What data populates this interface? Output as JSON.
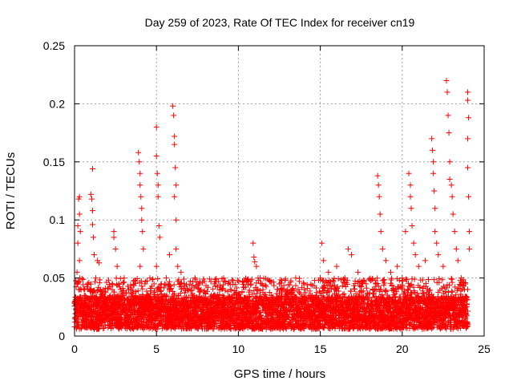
{
  "chart_data": {
    "type": "scatter",
    "title": "Day 259 of 2023, Rate Of TEC Index for receiver cn19",
    "xlabel": "GPS time / hours",
    "ylabel": "ROTI / TECUs",
    "xlim": [
      0,
      25
    ],
    "ylim": [
      0,
      0.25
    ],
    "x_ticks": [
      0,
      5,
      10,
      15,
      20,
      25
    ],
    "x_tick_labels": [
      "0",
      "5",
      "10",
      "15",
      "20",
      "25"
    ],
    "y_ticks": [
      0,
      0.05,
      0.1,
      0.15,
      0.2,
      0.25
    ],
    "y_tick_labels": [
      "0",
      "0.05",
      "0.1",
      "0.15",
      "0.2",
      "0.25"
    ],
    "grid": true,
    "legend": "none",
    "marker": "plus",
    "color": "#ff0000",
    "series": [
      {
        "values": [
          [
            0.1,
            0.012
          ],
          [
            0.1,
            0.03
          ],
          [
            0.15,
            0.055
          ],
          [
            0.2,
            0.08
          ],
          [
            0.2,
            0.095
          ],
          [
            0.25,
            0.118
          ],
          [
            0.3,
            0.12
          ],
          [
            0.3,
            0.105
          ],
          [
            0.35,
            0.09
          ],
          [
            0.3,
            0.065
          ],
          [
            0.4,
            0.04
          ],
          [
            0.5,
            0.025
          ],
          [
            0.6,
            0.035
          ],
          [
            0.7,
            0.02
          ],
          [
            0.8,
            0.045
          ],
          [
            1.0,
            0.122
          ],
          [
            1.05,
            0.118
          ],
          [
            1.1,
            0.108
          ],
          [
            1.1,
            0.096
          ],
          [
            1.15,
            0.085
          ],
          [
            1.2,
            0.07
          ],
          [
            1.1,
            0.144
          ],
          [
            1.3,
            0.05
          ],
          [
            1.4,
            0.065
          ],
          [
            1.5,
            0.063
          ],
          [
            1.6,
            0.04
          ],
          [
            1.8,
            0.03
          ],
          [
            2.2,
            0.035
          ],
          [
            2.4,
            0.085
          ],
          [
            2.4,
            0.09
          ],
          [
            2.5,
            0.075
          ],
          [
            2.6,
            0.06
          ],
          [
            2.7,
            0.045
          ],
          [
            3.0,
            0.035
          ],
          [
            3.3,
            0.04
          ],
          [
            3.6,
            0.03
          ],
          [
            3.9,
            0.158
          ],
          [
            3.95,
            0.15
          ],
          [
            4.0,
            0.14
          ],
          [
            4.0,
            0.13
          ],
          [
            4.05,
            0.12
          ],
          [
            4.1,
            0.11
          ],
          [
            4.1,
            0.1
          ],
          [
            4.15,
            0.09
          ],
          [
            4.2,
            0.075
          ],
          [
            4.0,
            0.06
          ],
          [
            4.3,
            0.045
          ],
          [
            4.5,
            0.035
          ],
          [
            4.6,
            0.05
          ],
          [
            5.0,
            0.18
          ],
          [
            5.0,
            0.155
          ],
          [
            5.05,
            0.14
          ],
          [
            5.1,
            0.13
          ],
          [
            5.1,
            0.12
          ],
          [
            5.15,
            0.095
          ],
          [
            5.2,
            0.085
          ],
          [
            5.0,
            0.06
          ],
          [
            5.3,
            0.045
          ],
          [
            5.5,
            0.035
          ],
          [
            5.6,
            0.05
          ],
          [
            5.8,
            0.07
          ],
          [
            6.0,
            0.198
          ],
          [
            6.05,
            0.19
          ],
          [
            6.1,
            0.172
          ],
          [
            6.1,
            0.165
          ],
          [
            6.15,
            0.145
          ],
          [
            6.2,
            0.13
          ],
          [
            6.1,
            0.12
          ],
          [
            6.2,
            0.1
          ],
          [
            6.2,
            0.075
          ],
          [
            6.3,
            0.06
          ],
          [
            6.5,
            0.055
          ],
          [
            6.7,
            0.045
          ],
          [
            7.0,
            0.04
          ],
          [
            7.3,
            0.035
          ],
          [
            7.6,
            0.045
          ],
          [
            8.0,
            0.03
          ],
          [
            8.5,
            0.035
          ],
          [
            9.0,
            0.03
          ],
          [
            9.5,
            0.04
          ],
          [
            10.0,
            0.035
          ],
          [
            10.5,
            0.025
          ],
          [
            10.9,
            0.08
          ],
          [
            10.95,
            0.068
          ],
          [
            11.0,
            0.064
          ],
          [
            11.1,
            0.06
          ],
          [
            11.5,
            0.04
          ],
          [
            12.0,
            0.035
          ],
          [
            12.5,
            0.045
          ],
          [
            13.0,
            0.04
          ],
          [
            13.5,
            0.05
          ],
          [
            14.0,
            0.045
          ],
          [
            14.5,
            0.035
          ],
          [
            15.0,
            0.05
          ],
          [
            15.1,
            0.08
          ],
          [
            15.2,
            0.065
          ],
          [
            15.5,
            0.055
          ],
          [
            16.0,
            0.06
          ],
          [
            16.5,
            0.05
          ],
          [
            16.7,
            0.075
          ],
          [
            16.9,
            0.07
          ],
          [
            17.3,
            0.055
          ],
          [
            17.8,
            0.045
          ],
          [
            18.2,
            0.04
          ],
          [
            18.5,
            0.138
          ],
          [
            18.55,
            0.13
          ],
          [
            18.6,
            0.12
          ],
          [
            18.65,
            0.105
          ],
          [
            18.7,
            0.09
          ],
          [
            18.8,
            0.075
          ],
          [
            19.0,
            0.065
          ],
          [
            19.3,
            0.055
          ],
          [
            19.7,
            0.06
          ],
          [
            20.0,
            0.05
          ],
          [
            20.2,
            0.09
          ],
          [
            20.4,
            0.14
          ],
          [
            20.5,
            0.13
          ],
          [
            20.5,
            0.12
          ],
          [
            20.55,
            0.11
          ],
          [
            20.6,
            0.095
          ],
          [
            20.7,
            0.08
          ],
          [
            20.8,
            0.07
          ],
          [
            21.0,
            0.06
          ],
          [
            21.4,
            0.065
          ],
          [
            21.8,
            0.17
          ],
          [
            21.85,
            0.16
          ],
          [
            21.9,
            0.15
          ],
          [
            21.9,
            0.14
          ],
          [
            21.95,
            0.125
          ],
          [
            22.0,
            0.11
          ],
          [
            22.0,
            0.09
          ],
          [
            22.1,
            0.08
          ],
          [
            22.2,
            0.07
          ],
          [
            22.5,
            0.06
          ],
          [
            22.7,
            0.22
          ],
          [
            22.75,
            0.21
          ],
          [
            22.8,
            0.19
          ],
          [
            22.85,
            0.175
          ],
          [
            22.9,
            0.15
          ],
          [
            22.9,
            0.135
          ],
          [
            23.0,
            0.13
          ],
          [
            23.05,
            0.12
          ],
          [
            23.1,
            0.105
          ],
          [
            23.2,
            0.09
          ],
          [
            23.3,
            0.075
          ],
          [
            23.4,
            0.065
          ],
          [
            23.6,
            0.05
          ],
          [
            23.8,
            0.04
          ],
          [
            24.0,
            0.21
          ],
          [
            24.0,
            0.203
          ],
          [
            24.05,
            0.188
          ],
          [
            24.0,
            0.17
          ],
          [
            24.0,
            0.145
          ],
          [
            24.05,
            0.12
          ],
          [
            24.1,
            0.09
          ],
          [
            24.1,
            0.075
          ]
        ],
        "band": {
          "x_start": 0,
          "x_end": 24,
          "x_step": 0.025,
          "y_base_min": 0.006,
          "y_base_max": 0.034,
          "y_active_max": 0.05
        }
      }
    ]
  }
}
